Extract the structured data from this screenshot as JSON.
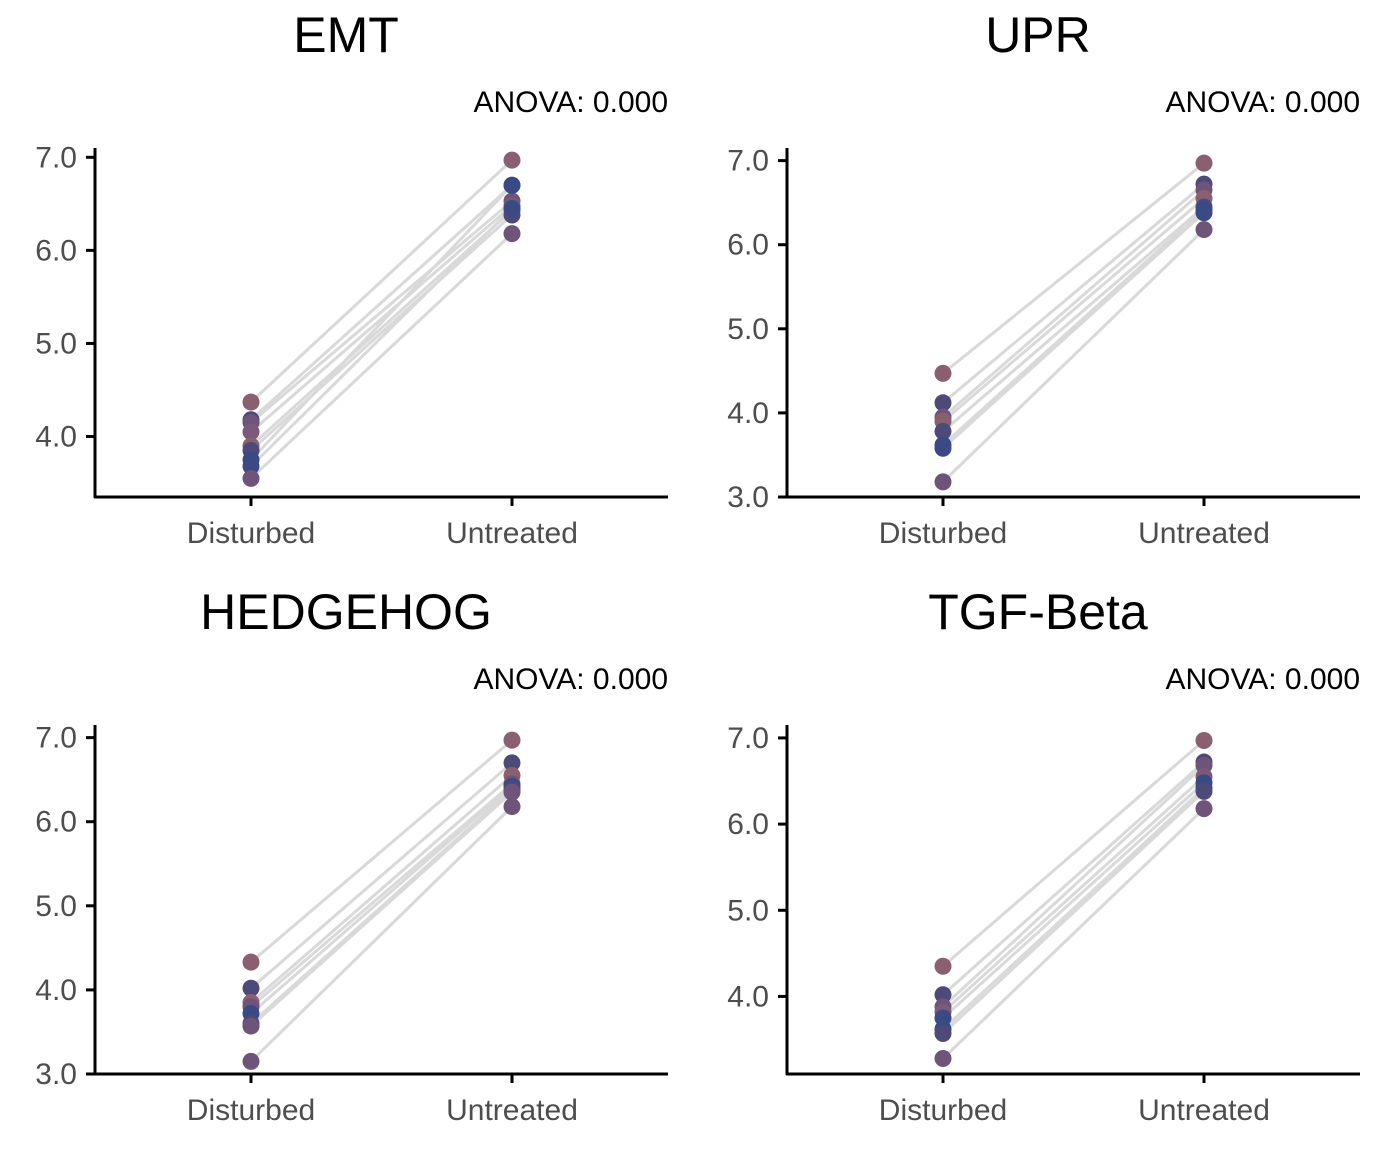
{
  "colors": {
    "line": "#d9d9d9",
    "axis": "#000000",
    "tick_text": "#4d4d4d",
    "point_palette": [
      "#8a6071",
      "#4d4a7a",
      "#6d5478",
      "#3a4a84",
      "#7a5a78"
    ]
  },
  "chart_data": [
    {
      "type": "scatter",
      "title": "EMT",
      "subtitle": "ANOVA: 0.000",
      "categories": [
        "Disturbed",
        "Untreated"
      ],
      "yticks": [
        4.0,
        5.0,
        6.0,
        7.0
      ],
      "ylim": [
        3.35,
        7.1
      ],
      "pairs": [
        [
          4.37,
          6.97
        ],
        [
          4.18,
          6.7
        ],
        [
          4.15,
          6.53
        ],
        [
          4.05,
          6.48
        ],
        [
          3.9,
          6.43
        ],
        [
          3.85,
          6.38
        ],
        [
          3.75,
          6.7
        ],
        [
          3.68,
          6.45
        ],
        [
          3.55,
          6.18
        ]
      ],
      "point_colors": [
        "#8a6071",
        "#4d4a7a",
        "#6d5478",
        "#7a5a78",
        "#8a6071",
        "#4d4a7a",
        "#3a4a84",
        "#3a4a84",
        "#6d5478"
      ]
    },
    {
      "type": "scatter",
      "title": "UPR",
      "subtitle": "ANOVA: 0.000",
      "categories": [
        "Disturbed",
        "Untreated"
      ],
      "yticks": [
        3.0,
        4.0,
        5.0,
        6.0,
        7.0
      ],
      "ylim": [
        3.0,
        7.15
      ],
      "pairs": [
        [
          4.47,
          6.97
        ],
        [
          4.12,
          6.72
        ],
        [
          3.95,
          6.65
        ],
        [
          3.9,
          6.55
        ],
        [
          3.78,
          6.45
        ],
        [
          3.62,
          6.42
        ],
        [
          3.58,
          6.38
        ],
        [
          3.18,
          6.18
        ]
      ],
      "point_colors": [
        "#8a6071",
        "#4d4a7a",
        "#6d5478",
        "#8a6071",
        "#4d4a7a",
        "#3a4a84",
        "#3a4a84",
        "#6d5478"
      ]
    },
    {
      "type": "scatter",
      "title": "HEDGEHOG",
      "subtitle": "ANOVA: 0.000",
      "categories": [
        "Disturbed",
        "Untreated"
      ],
      "yticks": [
        3.0,
        4.0,
        5.0,
        6.0,
        7.0
      ],
      "ylim": [
        3.0,
        7.15
      ],
      "pairs": [
        [
          4.33,
          6.97
        ],
        [
          4.02,
          6.7
        ],
        [
          3.85,
          6.55
        ],
        [
          3.8,
          6.45
        ],
        [
          3.72,
          6.42
        ],
        [
          3.6,
          6.38
        ],
        [
          3.57,
          6.35
        ],
        [
          3.15,
          6.18
        ]
      ],
      "point_colors": [
        "#8a6071",
        "#4d4a7a",
        "#8a6071",
        "#6d5478",
        "#3a4a84",
        "#4d4a7a",
        "#6d5478",
        "#6d5478"
      ]
    },
    {
      "type": "scatter",
      "title": "TGF-Beta",
      "subtitle": "ANOVA: 0.000",
      "categories": [
        "Disturbed",
        "Untreated"
      ],
      "yticks": [
        4.0,
        5.0,
        6.0,
        7.0
      ],
      "ylim": [
        3.1,
        7.15
      ],
      "pairs": [
        [
          4.35,
          6.97
        ],
        [
          4.02,
          6.72
        ],
        [
          3.88,
          6.68
        ],
        [
          3.82,
          6.55
        ],
        [
          3.75,
          6.48
        ],
        [
          3.62,
          6.42
        ],
        [
          3.57,
          6.38
        ],
        [
          3.28,
          6.18
        ]
      ],
      "point_colors": [
        "#8a6071",
        "#4d4a7a",
        "#6d5478",
        "#7a5a78",
        "#3a4a84",
        "#3a4a84",
        "#4d4a7a",
        "#6d5478"
      ]
    }
  ]
}
